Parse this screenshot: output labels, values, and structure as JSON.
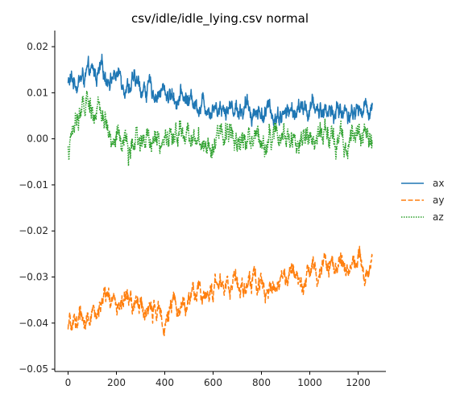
{
  "chart_data": {
    "type": "line",
    "title": "csv/idle/idle_lying.csv normal",
    "xlabel": "",
    "ylabel": "",
    "xlim": [
      -55,
      1315
    ],
    "ylim": [
      -0.0505,
      0.0235
    ],
    "x_ticks": [
      0,
      200,
      400,
      600,
      800,
      1000,
      1200
    ],
    "y_ticks": [
      -0.05,
      -0.04,
      -0.03,
      -0.02,
      -0.01,
      0.0,
      0.01,
      0.02
    ],
    "x_tick_labels": [
      "0",
      "200",
      "400",
      "600",
      "800",
      "1000",
      "1200"
    ],
    "y_tick_labels": [
      "−0.05",
      "−0.04",
      "−0.03",
      "−0.02",
      "−0.01",
      "0.00",
      "0.01",
      "0.02"
    ],
    "grid": false,
    "legend_position": "right",
    "n_points": 1260,
    "series": [
      {
        "name": "ax",
        "color": "#1f77b4",
        "dash": "solid",
        "anchors_x": [
          0,
          40,
          100,
          150,
          200,
          250,
          300,
          400,
          500,
          600,
          700,
          800,
          900,
          1000,
          1100,
          1200,
          1260
        ],
        "anchors_y": [
          0.012,
          0.013,
          0.0135,
          0.014,
          0.014,
          0.0125,
          0.011,
          0.01,
          0.0085,
          0.0075,
          0.007,
          0.006,
          0.0055,
          0.0065,
          0.006,
          0.006,
          0.007
        ],
        "noise": 0.0028
      },
      {
        "name": "ay",
        "color": "#ff7f0e",
        "dash": "dashed",
        "anchors_x": [
          0,
          40,
          100,
          150,
          200,
          250,
          300,
          400,
          500,
          600,
          700,
          800,
          900,
          1000,
          1100,
          1200,
          1260
        ],
        "anchors_y": [
          -0.042,
          -0.039,
          -0.038,
          -0.036,
          -0.0355,
          -0.035,
          -0.037,
          -0.038,
          -0.035,
          -0.0325,
          -0.0305,
          -0.0315,
          -0.0305,
          -0.0285,
          -0.0275,
          -0.026,
          -0.028
        ],
        "noise": 0.003
      },
      {
        "name": "az",
        "color": "#2ca02c",
        "dash": "dotted",
        "anchors_x": [
          0,
          40,
          100,
          150,
          200,
          250,
          300,
          400,
          500,
          600,
          700,
          800,
          900,
          1000,
          1100,
          1200,
          1260
        ],
        "anchors_y": [
          -0.003,
          0.006,
          0.0065,
          0.003,
          0.0,
          -0.003,
          -0.001,
          0.0005,
          0.001,
          0.0005,
          0.001,
          0.0005,
          0.0005,
          0.0,
          0.0005,
          0.002,
          0.001
        ],
        "noise": 0.0035
      }
    ]
  }
}
